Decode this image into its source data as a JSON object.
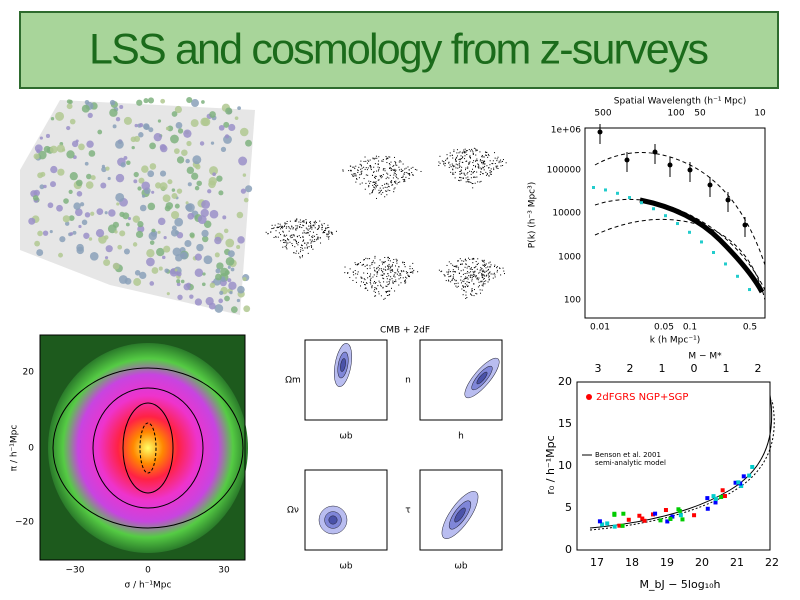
{
  "title": "LSS and cosmology from z-surveys",
  "power_spectrum": {
    "top_axis_label": "Spatial Wavelength (h⁻¹ Mpc)",
    "top_ticks": [
      "500",
      "100",
      "50",
      "10"
    ],
    "y_ticks": [
      "100",
      "1000",
      "10000",
      "100000",
      "1e+06"
    ],
    "x_ticks": [
      "0.01",
      "0.05",
      "0.1",
      "0.5"
    ],
    "x_label": "k (h Mpc⁻¹)",
    "y_label": "P(k) (h⁻³ Mpc³)"
  },
  "correlation_map": {
    "y_label": "π / h⁻¹Mpc",
    "x_label": "σ / h⁻¹Mpc",
    "y_ticks": [
      "20",
      "0",
      "−20"
    ],
    "x_ticks": [
      "−30",
      "0",
      "30"
    ]
  },
  "contours": {
    "title": "CMB + 2dF",
    "panels": [
      {
        "x_label": "ωb",
        "y_label": "Ωm"
      },
      {
        "x_label": "h",
        "y_label": "n"
      },
      {
        "x_label": "ωb",
        "y_label": "Ων"
      },
      {
        "x_label": "ωb",
        "y_label": "τ"
      }
    ]
  },
  "clustering": {
    "top_axis_label": "M − M*",
    "top_ticks": [
      "3",
      "2",
      "1",
      "0",
      "1",
      "2"
    ],
    "y_ticks": [
      "20",
      "15",
      "10",
      "5",
      "0"
    ],
    "x_ticks": [
      "17",
      "18",
      "19",
      "20",
      "21",
      "22"
    ],
    "y_label": "r₀ / h⁻¹Mpc",
    "x_label": "M_bJ − 5log₁₀h",
    "legend": [
      "2dFGRS NGP+SGP",
      "Benson et al. 2001",
      "semi-analytic model"
    ]
  }
}
